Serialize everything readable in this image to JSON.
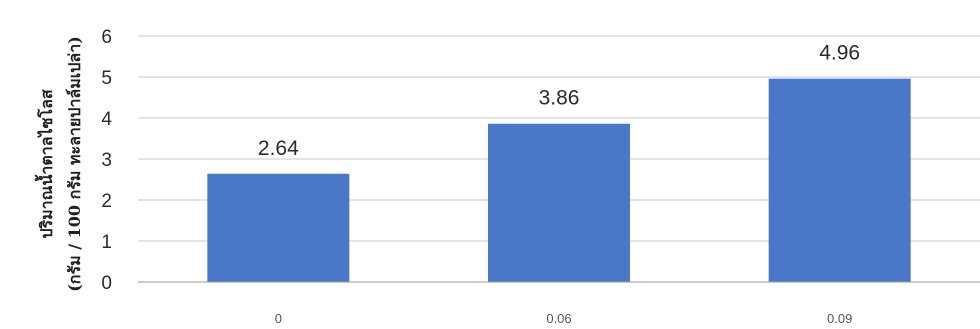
{
  "chart_data": {
    "type": "bar",
    "categories": [
      "0",
      "0.06",
      "0.09"
    ],
    "values": [
      2.64,
      3.86,
      4.96
    ],
    "data_labels": [
      "2.64",
      "3.86",
      "4.96"
    ],
    "title": "",
    "xlabel": "",
    "ylabel_line1": "ปริมาณน้ำตาลไซโลส",
    "ylabel_line2": "(กรัม / 100 กรัม ทะลายปาล์มเปล่า)",
    "yticks": [
      "0",
      "1",
      "2",
      "3",
      "4",
      "5",
      "6"
    ],
    "ylim": [
      0,
      6
    ],
    "grid": true,
    "legend": "none",
    "colors": {
      "bar": "#4a78c8",
      "grid": "#c9c9c9",
      "axis": "#9a9a9a"
    }
  }
}
